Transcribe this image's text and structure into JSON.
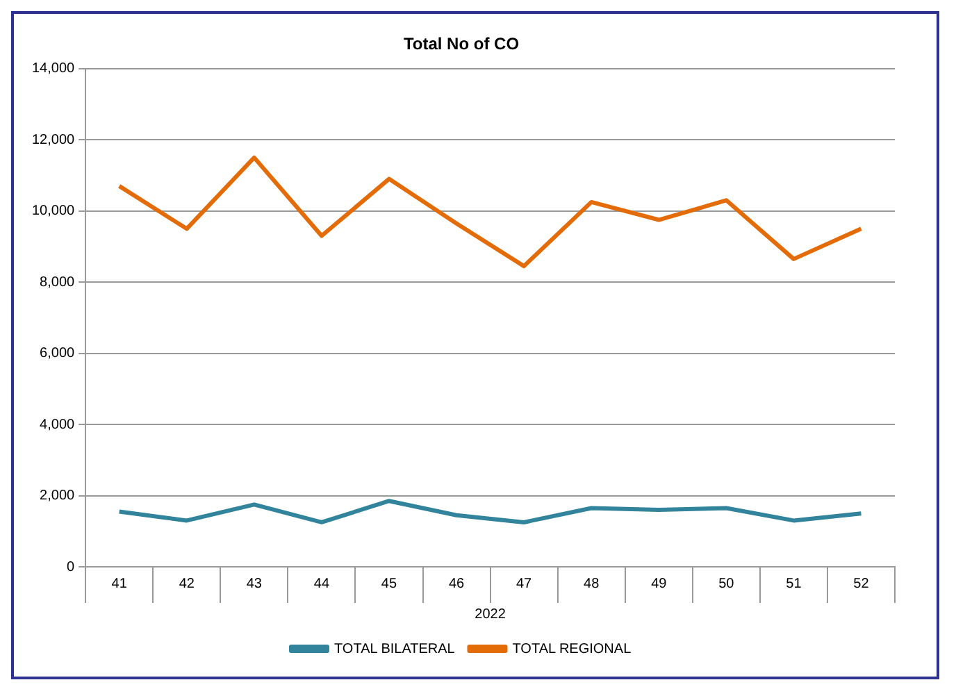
{
  "chart_data": {
    "type": "line",
    "title": "Total No of CO",
    "xlabel": "2022",
    "categories": [
      "41",
      "42",
      "43",
      "44",
      "45",
      "46",
      "47",
      "48",
      "49",
      "50",
      "51",
      "52"
    ],
    "series": [
      {
        "name": "TOTAL BILATERAL",
        "color": "#31849b",
        "values": [
          1550,
          1300,
          1750,
          1250,
          1850,
          1450,
          1250,
          1650,
          1600,
          1650,
          1300,
          1500
        ]
      },
      {
        "name": "TOTAL REGIONAL",
        "color": "#e36c09",
        "values": [
          10700,
          9500,
          11500,
          9300,
          10900,
          9650,
          8450,
          10250,
          9750,
          10300,
          8650,
          9500
        ]
      }
    ],
    "ylim": [
      0,
      14000
    ],
    "yticks": [
      {
        "value": 0,
        "label": "0"
      },
      {
        "value": 2000,
        "label": "2,000"
      },
      {
        "value": 4000,
        "label": "4,000"
      },
      {
        "value": 6000,
        "label": "6,000"
      },
      {
        "value": 8000,
        "label": "8,000"
      },
      {
        "value": 10000,
        "label": "10,000"
      },
      {
        "value": 12000,
        "label": "12,000"
      },
      {
        "value": 14000,
        "label": "14,000"
      }
    ],
    "grid": "y",
    "legend": "bottom",
    "marker": "none",
    "line_style": "solid"
  }
}
